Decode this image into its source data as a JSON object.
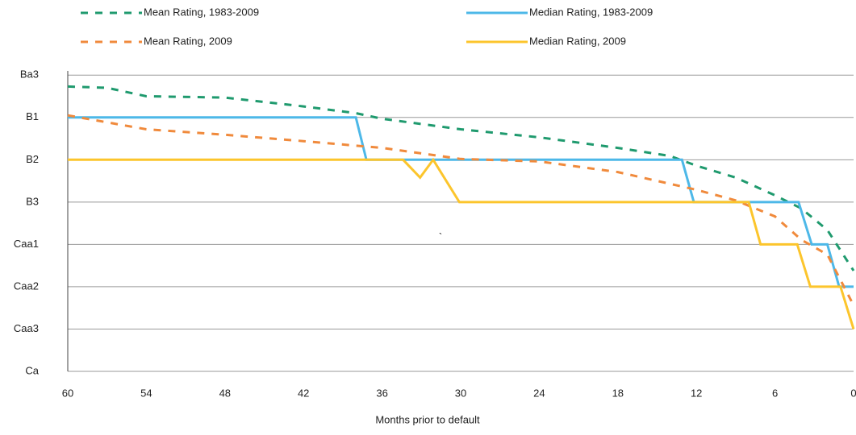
{
  "chart_data": {
    "type": "line",
    "x_label": "Months prior to default",
    "annotation": "`",
    "xlim": [
      60,
      0
    ],
    "xticks": [
      60,
      54,
      48,
      42,
      36,
      30,
      24,
      18,
      12,
      6,
      0
    ],
    "ylim": [
      20,
      12.9
    ],
    "yticks": [
      {
        "value": 13,
        "label": "Ba3"
      },
      {
        "value": 14,
        "label": "B1"
      },
      {
        "value": 15,
        "label": "B2"
      },
      {
        "value": 16,
        "label": "B3"
      },
      {
        "value": 17,
        "label": "Caa1"
      },
      {
        "value": 18,
        "label": "Caa2"
      },
      {
        "value": 19,
        "label": "Caa3"
      },
      {
        "value": 20,
        "label": "Ca"
      }
    ],
    "grid": true,
    "series": [
      {
        "name": "Mean Rating, 1983-2009",
        "color": "#1f9a6e",
        "dashed": true,
        "x": [
          60,
          57,
          54,
          48,
          42,
          38,
          36,
          30,
          24,
          18,
          14,
          12,
          9,
          6,
          4,
          2,
          0
        ],
        "values": [
          13.27,
          13.3,
          13.5,
          13.53,
          13.74,
          13.9,
          14.03,
          14.28,
          14.47,
          14.72,
          14.91,
          15.14,
          15.42,
          15.84,
          16.15,
          16.66,
          17.62
        ]
      },
      {
        "name": "Median Rating, 1983-2009",
        "color": "#4db8e8",
        "dashed": false,
        "x": [
          60,
          38,
          37.2,
          13.1,
          12.2,
          4.2,
          3.2,
          2,
          1.1,
          0
        ],
        "values": [
          14,
          14,
          15,
          15,
          16,
          16,
          17,
          17,
          18,
          18
        ]
      },
      {
        "name": "Mean Rating, 2009",
        "color": "#f08a3c",
        "dashed": true,
        "x": [
          60,
          54,
          48,
          42,
          36,
          33,
          30,
          24,
          18,
          12,
          9,
          6,
          4,
          2,
          0
        ],
        "values": [
          13.95,
          14.28,
          14.41,
          14.56,
          14.72,
          14.85,
          14.98,
          15.04,
          15.29,
          15.71,
          15.96,
          16.34,
          16.89,
          17.24,
          18.44
        ]
      },
      {
        "name": "Median Rating, 2009",
        "color": "#fcc52c",
        "dashed": false,
        "x": [
          60,
          34.4,
          33.1,
          32.1,
          30.1,
          8,
          7.1,
          4.3,
          3.3,
          1,
          0
        ],
        "values": [
          15,
          15,
          15.42,
          15,
          16,
          16,
          17,
          17,
          18,
          18,
          19
        ]
      }
    ]
  }
}
